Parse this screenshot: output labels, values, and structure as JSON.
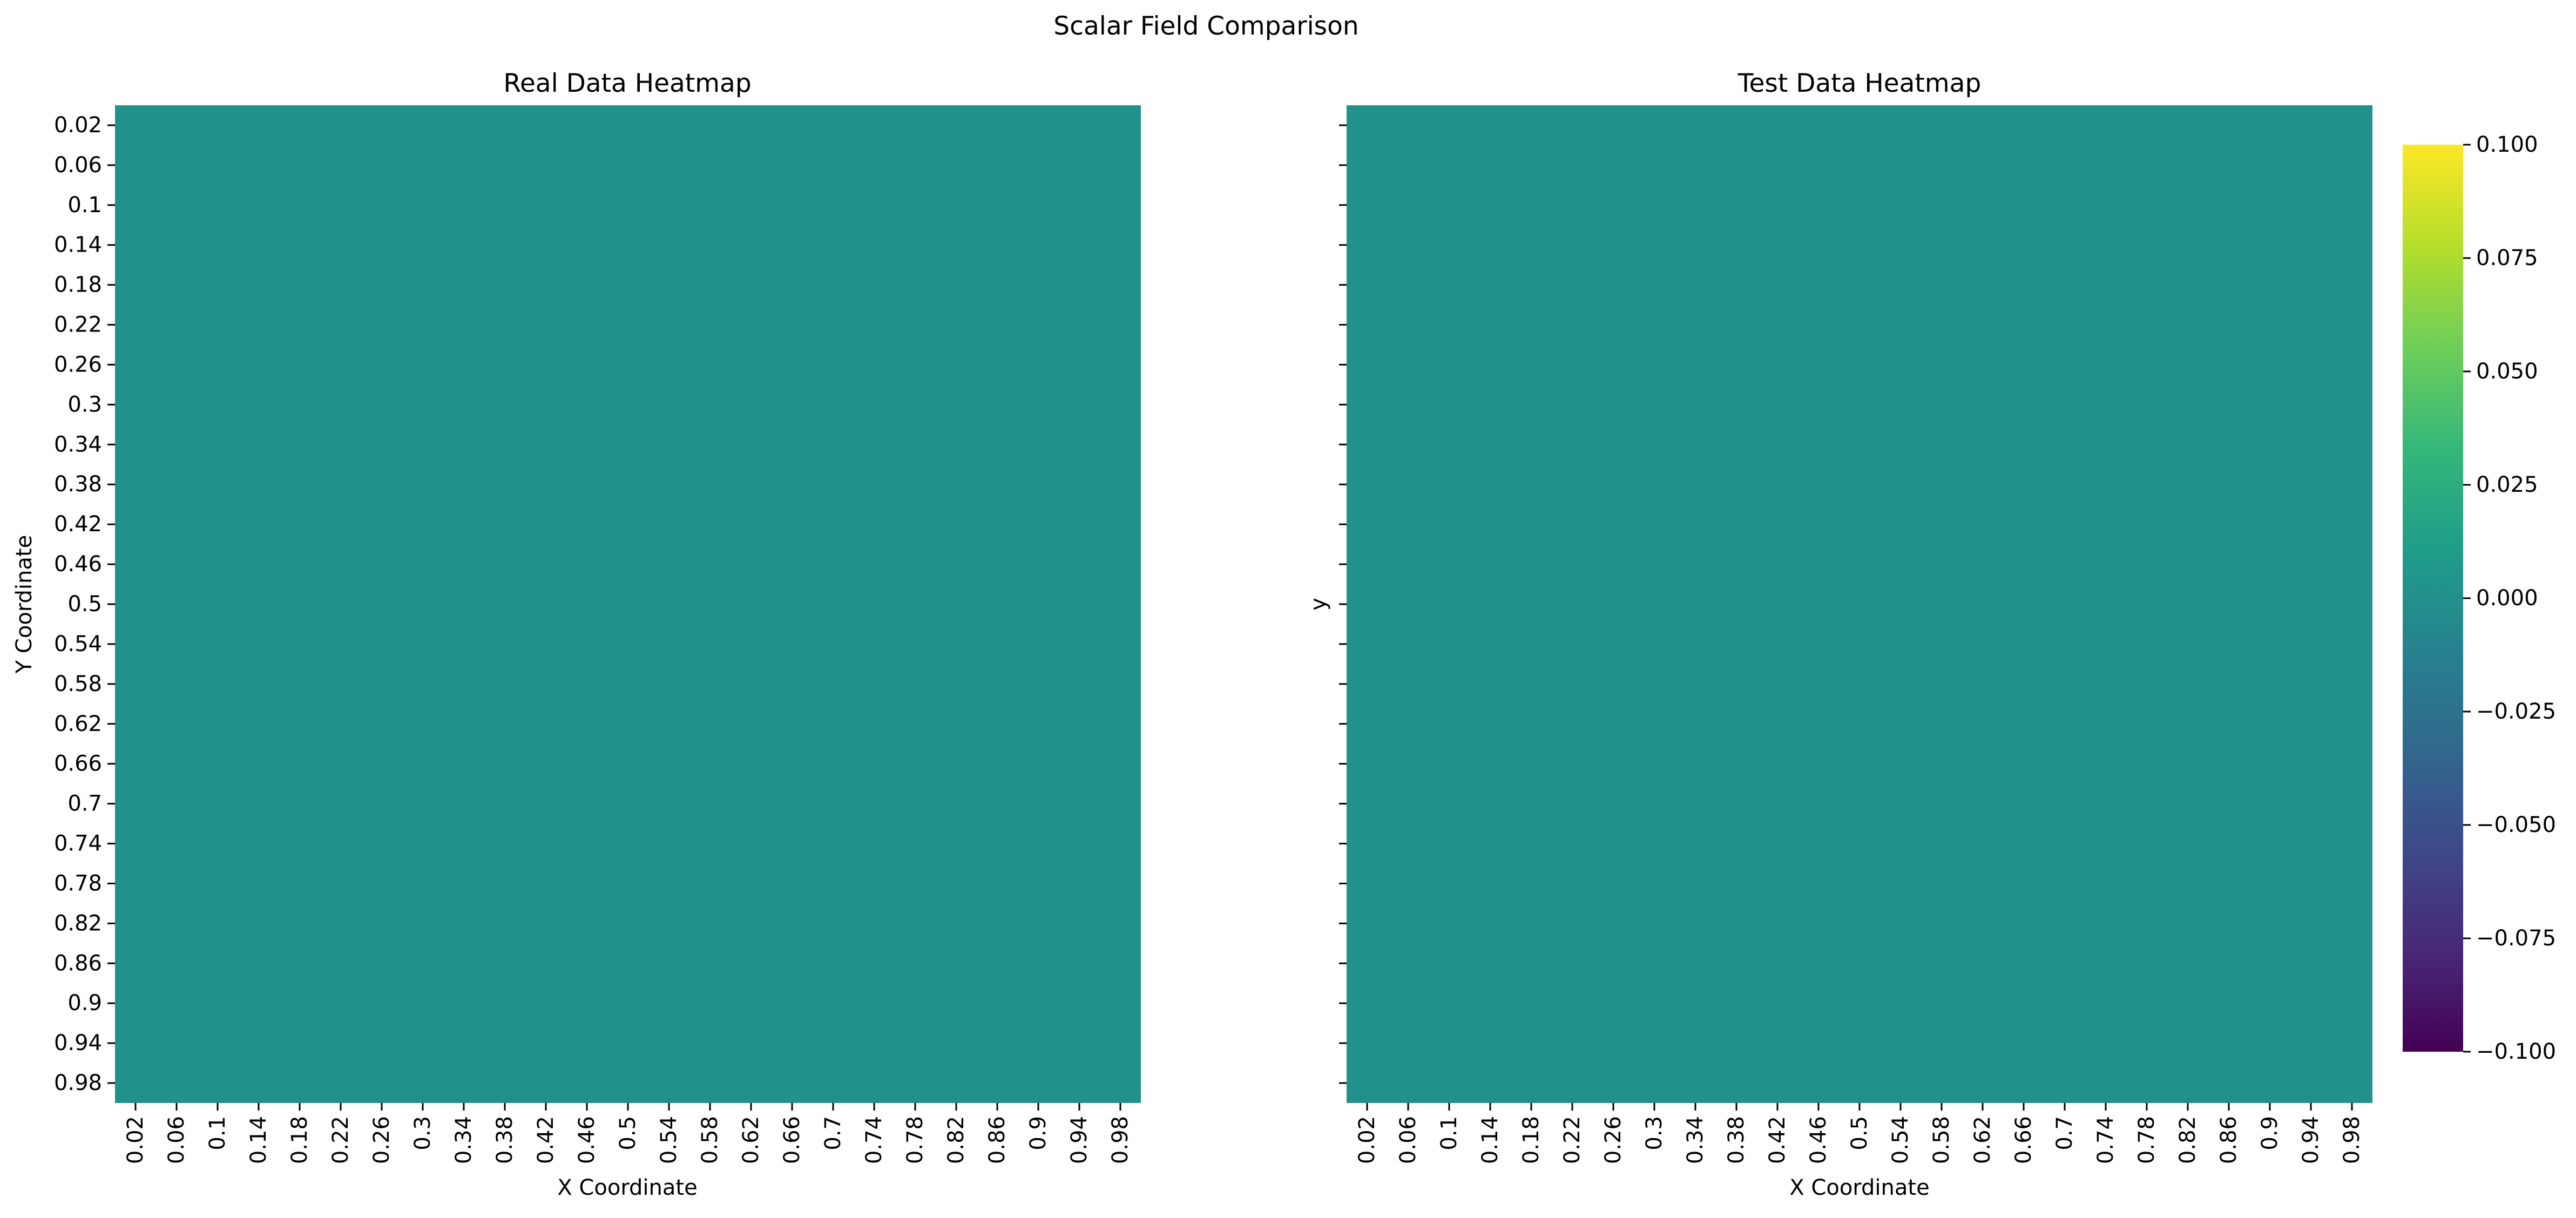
{
  "title": "Scalar Field Comparison",
  "chart_data": [
    {
      "type": "heatmap",
      "title": "Real Data Heatmap",
      "xlabel": "X Coordinate",
      "ylabel": "Y Coordinate",
      "x_ticks": [
        "0.02",
        "0.06",
        "0.1",
        "0.14",
        "0.18",
        "0.22",
        "0.26",
        "0.3",
        "0.34",
        "0.38",
        "0.42",
        "0.46",
        "0.5",
        "0.54",
        "0.58",
        "0.62",
        "0.66",
        "0.7",
        "0.74",
        "0.78",
        "0.82",
        "0.86",
        "0.9",
        "0.94",
        "0.98"
      ],
      "y_ticks": [
        "0.02",
        "0.06",
        "0.1",
        "0.14",
        "0.18",
        "0.22",
        "0.26",
        "0.3",
        "0.34",
        "0.38",
        "0.42",
        "0.46",
        "0.5",
        "0.54",
        "0.58",
        "0.62",
        "0.66",
        "0.7",
        "0.74",
        "0.78",
        "0.82",
        "0.86",
        "0.9",
        "0.94",
        "0.98"
      ],
      "fill_value": 0.0,
      "colormap": "viridis",
      "cell_color": "#21918c"
    },
    {
      "type": "heatmap",
      "title": "Test Data Heatmap",
      "xlabel": "X Coordinate",
      "ylabel": "y",
      "x_ticks": [
        "0.02",
        "0.06",
        "0.1",
        "0.14",
        "0.18",
        "0.22",
        "0.26",
        "0.3",
        "0.34",
        "0.38",
        "0.42",
        "0.46",
        "0.5",
        "0.54",
        "0.58",
        "0.62",
        "0.66",
        "0.7",
        "0.74",
        "0.78",
        "0.82",
        "0.86",
        "0.9",
        "0.94",
        "0.98"
      ],
      "y_tick_count": 25,
      "fill_value": 0.0,
      "colormap": "viridis",
      "cell_color": "#21918c"
    }
  ],
  "colorbar": {
    "ticks": [
      "0.100",
      "0.075",
      "0.050",
      "0.025",
      "0.000",
      "−0.025",
      "−0.050",
      "−0.075",
      "−0.100"
    ],
    "range": [
      -0.1,
      0.1
    ],
    "colors": [
      "#440154",
      "#482878",
      "#3e4989",
      "#31688e",
      "#26828e",
      "#1f9e89",
      "#35b779",
      "#6ece58",
      "#b5de2b",
      "#fde725"
    ]
  }
}
